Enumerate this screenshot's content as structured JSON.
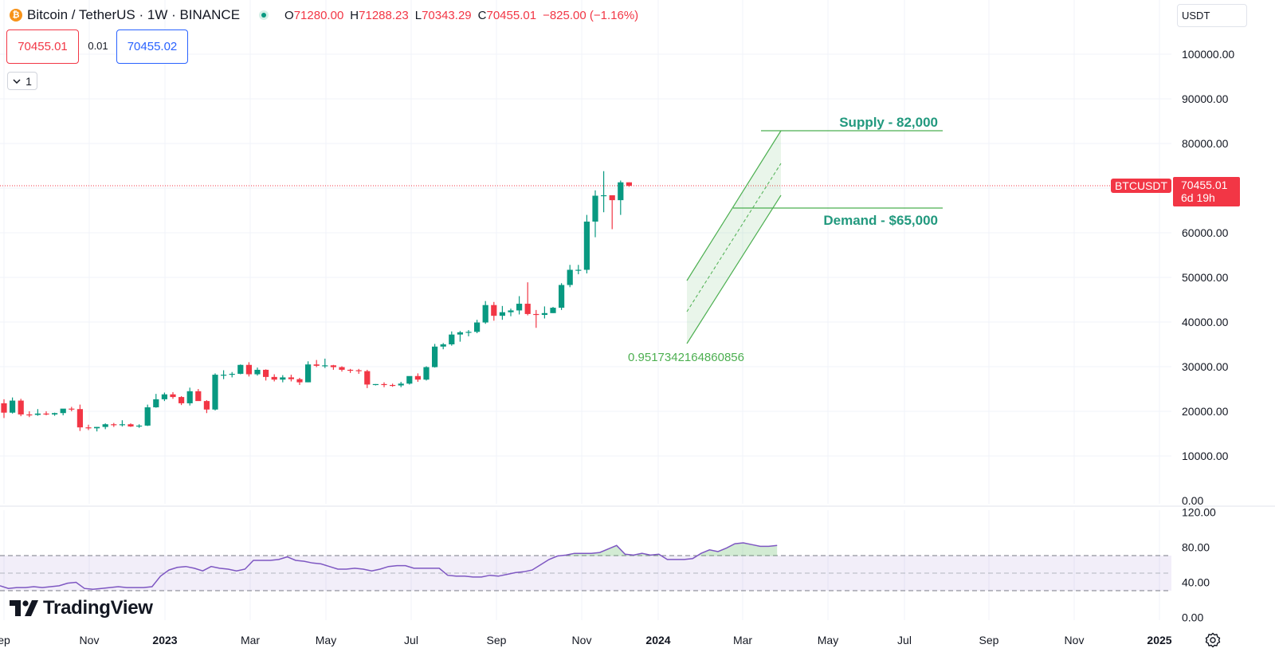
{
  "header": {
    "symbol_title": "Bitcoin / TetherUS · 1W · BINANCE",
    "coin_glyph": "₿",
    "ohlc": [
      {
        "key": "O",
        "value": "71280.00"
      },
      {
        "key": "H",
        "value": "71288.23"
      },
      {
        "key": "L",
        "value": "70343.29"
      },
      {
        "key": "C",
        "value": "70455.01"
      }
    ],
    "change": "−825.00 (−1.16%)"
  },
  "trade": {
    "sell_price": "70455.01",
    "spread": "0.01",
    "buy_price": "70455.02",
    "quantity": "1"
  },
  "currency_menu": "USDT",
  "last_price_tag": {
    "symbol": "BTCUSDT",
    "price": "70455.01",
    "countdown": "6d 19h"
  },
  "branding": {
    "logo_text": "TradingView"
  },
  "colors": {
    "up": "#089981",
    "down": "#f23645",
    "rsi_line": "#7e57c2",
    "channel": "#4caf50",
    "annotation_text": "#22997e"
  },
  "chart_data": [
    {
      "type": "candlestick",
      "x_axis": {
        "ticks": [
          "ep",
          "Nov",
          "2023",
          "Mar",
          "May",
          "Jul",
          "Sep",
          "Nov",
          "2024",
          "Mar",
          "May",
          "Jul",
          "Sep",
          "Nov",
          "2025"
        ],
        "bold_ticks": [
          "2023",
          "2024",
          "2025"
        ]
      },
      "y_axis": {
        "ticks": [
          "100000.00",
          "90000.00",
          "80000.00",
          "70000.00",
          "60000.00",
          "50000.00",
          "40000.00",
          "30000.00",
          "20000.00",
          "10000.00",
          "0.00"
        ],
        "range": [
          0,
          110000
        ]
      },
      "ohlc": [
        [
          21800,
          22700,
          18500,
          19700
        ],
        [
          19700,
          23100,
          19500,
          22400
        ],
        [
          22400,
          22800,
          18900,
          19300
        ],
        [
          19300,
          20000,
          18700,
          19200
        ],
        [
          19200,
          20500,
          19000,
          19500
        ],
        [
          19500,
          20000,
          19100,
          19300
        ],
        [
          19300,
          19700,
          19000,
          19600
        ],
        [
          19600,
          20500,
          19100,
          20600
        ],
        [
          20600,
          21000,
          20000,
          20500
        ],
        [
          20500,
          21500,
          15600,
          16400
        ],
        [
          16400,
          17000,
          15800,
          16200
        ],
        [
          16200,
          16500,
          15500,
          16500
        ],
        [
          16500,
          17300,
          16000,
          17100
        ],
        [
          17100,
          17400,
          16500,
          16900
        ],
        [
          16900,
          18000,
          16600,
          17100
        ],
        [
          17100,
          17300,
          16500,
          16600
        ],
        [
          16600,
          17100,
          16300,
          16800
        ],
        [
          16800,
          21500,
          16700,
          20900
        ],
        [
          20900,
          23900,
          20800,
          22700
        ],
        [
          22700,
          24200,
          22300,
          23800
        ],
        [
          23800,
          24300,
          22800,
          23200
        ],
        [
          23200,
          23400,
          21400,
          21800
        ],
        [
          21800,
          25300,
          21300,
          24500
        ],
        [
          24500,
          25000,
          23000,
          22300
        ],
        [
          22300,
          22500,
          19600,
          20400
        ],
        [
          20400,
          28500,
          20200,
          28200
        ],
        [
          28200,
          29200,
          27200,
          28200
        ],
        [
          28200,
          28800,
          27600,
          28400
        ],
        [
          28400,
          30500,
          28300,
          30400
        ],
        [
          30400,
          31000,
          27800,
          28300
        ],
        [
          28300,
          29800,
          28000,
          29300
        ],
        [
          29300,
          29400,
          26900,
          27700
        ],
        [
          27700,
          28300,
          26700,
          27100
        ],
        [
          27100,
          28100,
          26500,
          27600
        ],
        [
          27600,
          28200,
          26700,
          27200
        ],
        [
          27200,
          27500,
          25900,
          26500
        ],
        [
          26500,
          31200,
          26500,
          30500
        ],
        [
          30500,
          31500,
          29900,
          30200
        ],
        [
          30200,
          31800,
          29700,
          30300
        ],
        [
          30300,
          30400,
          29300,
          29900
        ],
        [
          29900,
          30100,
          28900,
          29300
        ],
        [
          29300,
          29500,
          28600,
          29200
        ],
        [
          29200,
          29500,
          28400,
          29000
        ],
        [
          29000,
          29300,
          25200,
          26000
        ],
        [
          26000,
          26100,
          25800,
          26100
        ],
        [
          26100,
          26500,
          25400,
          25900
        ],
        [
          25900,
          26200,
          25500,
          25800
        ],
        [
          25800,
          26600,
          25400,
          26200
        ],
        [
          26200,
          27800,
          26000,
          27900
        ],
        [
          27900,
          28500,
          26600,
          27100
        ],
        [
          27100,
          30100,
          26900,
          29900
        ],
        [
          29900,
          35100,
          29800,
          34500
        ],
        [
          34500,
          35300,
          33900,
          35000
        ],
        [
          35000,
          37900,
          34700,
          37200
        ],
        [
          37200,
          38000,
          35600,
          37700
        ],
        [
          37700,
          38200,
          36800,
          37800
        ],
        [
          37800,
          40500,
          37500,
          39900
        ],
        [
          39900,
          44700,
          39600,
          43800
        ],
        [
          43800,
          44500,
          40300,
          41400
        ],
        [
          41400,
          43600,
          40500,
          42200
        ],
        [
          42200,
          43000,
          41300,
          42600
        ],
        [
          42600,
          45800,
          41700,
          44100
        ],
        [
          44100,
          48900,
          41500,
          41800
        ],
        [
          41800,
          42700,
          38700,
          41600
        ],
        [
          41600,
          43500,
          40800,
          42000
        ],
        [
          42000,
          43400,
          42000,
          43200
        ],
        [
          43200,
          48700,
          42700,
          48300
        ],
        [
          48300,
          52800,
          47800,
          51700
        ],
        [
          51700,
          52800,
          50700,
          51700
        ],
        [
          51700,
          64000,
          50900,
          62500
        ],
        [
          62500,
          69500,
          59000,
          68300
        ],
        [
          68300,
          73800,
          64600,
          68400
        ],
        [
          68400,
          68400,
          60800,
          67300
        ],
        [
          67300,
          71700,
          64000,
          71300
        ],
        [
          71300,
          71300,
          70300,
          70500
        ]
      ],
      "annotations": [
        {
          "text": "Supply - 82,000",
          "price": 82400
        },
        {
          "text": "Demand - $65,000",
          "price": 65400
        },
        {
          "text": "0.9517342164860856",
          "kind": "channel-label"
        }
      ]
    },
    {
      "type": "line",
      "name": "RSI",
      "y_axis": {
        "ticks": [
          "120.00",
          "80.00",
          "40.00",
          "0.00"
        ],
        "range": [
          0,
          120
        ]
      },
      "bands": {
        "upper": 70,
        "middle": 50,
        "lower": 30
      },
      "values": [
        36,
        33,
        34,
        34,
        35,
        34,
        35,
        36,
        39,
        40,
        33,
        32,
        33,
        34,
        35,
        34,
        34,
        34,
        35,
        47,
        54,
        57,
        58,
        56,
        53,
        58,
        56,
        55,
        53,
        55,
        65,
        65,
        65,
        66,
        69,
        65,
        64,
        62,
        61,
        58,
        55,
        55,
        56,
        55,
        53,
        55,
        58,
        59,
        59,
        56,
        56,
        56,
        56,
        48,
        47,
        47,
        46,
        46,
        48,
        47,
        49,
        51,
        52,
        54,
        60,
        66,
        70,
        71,
        73,
        73,
        73,
        74,
        78,
        82,
        72,
        71,
        73,
        71,
        72,
        66,
        66,
        66,
        67,
        73,
        77,
        75,
        79,
        84,
        85,
        83,
        81,
        81,
        82
      ]
    }
  ]
}
